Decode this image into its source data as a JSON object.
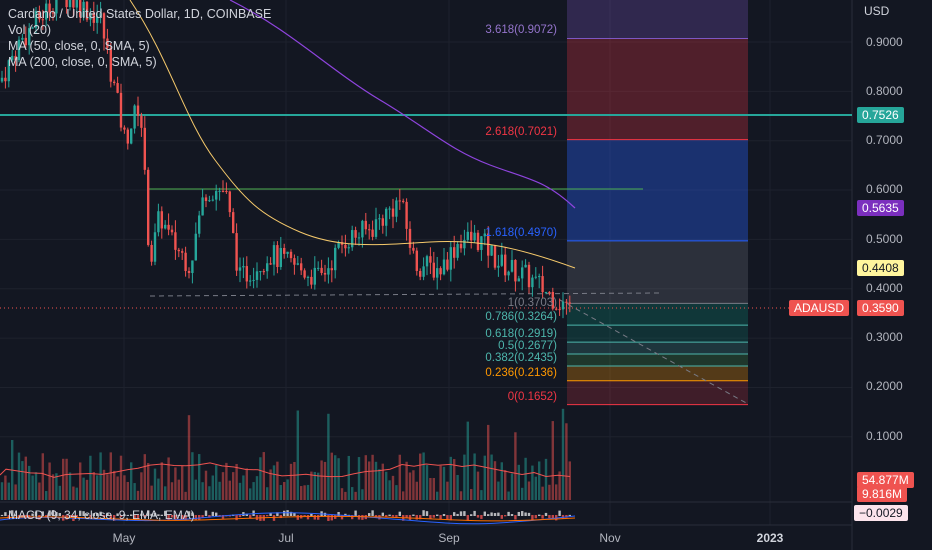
{
  "header": {
    "symbol_line": "Cardano / United States Dollar, 1D, COINBASE",
    "vol": "Vol (20)",
    "ma50": "MA (50, close, 0, SMA, 5)",
    "ma200": "MA (200, close, 0, SMA, 5)",
    "macd": "MACD (9, 34, close, 9, EMA, EMA)"
  },
  "axis": {
    "currency": "USD",
    "y_ticks": [
      "0.9000",
      "0.8000",
      "0.7000",
      "0.6000",
      "0.5000",
      "0.4000",
      "0.3000",
      "0.2000",
      "0.1000"
    ],
    "x_ticks": [
      "May",
      "Jul",
      "Sep",
      "Nov",
      "2023"
    ]
  },
  "badges": {
    "level_1": "0.7526",
    "ma200": "0.5635",
    "ma50": "0.4408",
    "symbol": "ADAUSD",
    "price": "0.3590",
    "volume": "54.877M",
    "volume_ma": "9.816M",
    "macd": "−0.0029"
  },
  "fib": [
    {
      "label": "3.618(0.9072)",
      "price": 0.9072
    },
    {
      "label": "2.618(0.7021)",
      "price": 0.7021
    },
    {
      "label": "1.618(0.4970)",
      "price": 0.497
    },
    {
      "label": "1(0.3703)",
      "price": 0.3703
    },
    {
      "label": "0.786(0.3264)",
      "price": 0.3264
    },
    {
      "label": "0.618(0.2919)",
      "price": 0.2919
    },
    {
      "label": "0.5(0.2677)",
      "price": 0.2677
    },
    {
      "label": "0.382(0.2435)",
      "price": 0.2435
    },
    {
      "label": "0.236(0.2136)",
      "price": 0.2136
    },
    {
      "label": "0(0.1652)",
      "price": 0.1652
    }
  ],
  "colors": {
    "background": "#131722",
    "up": "#26a69a",
    "down": "#ef5350",
    "ma50": "#f5c96b",
    "ma200": "#8e44dd",
    "level_line": "#26a69a",
    "fib_purple": "#7e57c2",
    "fib_red": "#f23645",
    "fib_blue": "#2962ff",
    "fib_green": "#4db6ac",
    "fib_orange": "#ff9800",
    "price_line": "#ef5350"
  },
  "chart_data": {
    "type": "candlestick",
    "instrument": "Cardano / United States Dollar",
    "interval": "1D",
    "exchange": "COINBASE",
    "last_price": 0.359,
    "ma50_last": 0.4408,
    "ma200_last": 0.5635,
    "horizontal_levels": [
      0.7526,
      0.6
    ],
    "ylim": [
      0.05,
      1.02
    ]
  }
}
